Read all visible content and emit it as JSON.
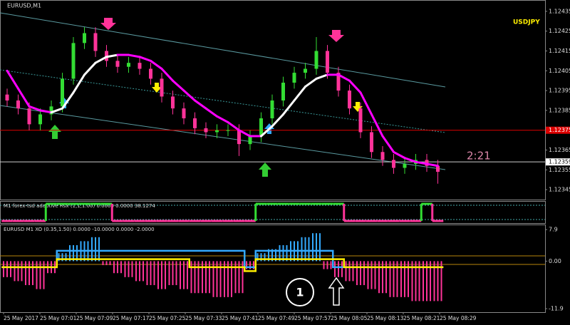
{
  "chart_data": [
    {
      "type": "candlestick",
      "title": "EURUSD,M1",
      "annotations": [
        "USDJPY",
        "2:21"
      ],
      "open": [
        1.12393,
        1.1239,
        1.12386,
        1.12378,
        1.12383,
        1.12387,
        1.12401,
        1.12419,
        1.12424,
        1.12415,
        1.1241,
        1.12407,
        1.12409,
        1.12406,
        1.12401,
        1.12392,
        1.12386,
        1.12381,
        1.12376,
        1.12374,
        1.12375,
        1.12375,
        1.12368,
        1.12372,
        1.12381,
        1.1239,
        1.12399,
        1.12404,
        1.12406,
        1.12415,
        1.12404,
        1.12395,
        1.12386,
        1.12374,
        1.12364,
        1.1236,
        1.12356,
        1.12358,
        1.1236,
        1.12357
      ],
      "high": [
        1.12396,
        1.12393,
        1.12389,
        1.12386,
        1.1239,
        1.12404,
        1.12422,
        1.12427,
        1.12427,
        1.12418,
        1.12413,
        1.12412,
        1.12412,
        1.12409,
        1.12404,
        1.12395,
        1.12389,
        1.12384,
        1.12379,
        1.12378,
        1.12378,
        1.12378,
        1.12375,
        1.12384,
        1.12393,
        1.12402,
        1.12407,
        1.12409,
        1.12422,
        1.12418,
        1.12407,
        1.12398,
        1.12389,
        1.12377,
        1.12367,
        1.12363,
        1.12361,
        1.12363,
        1.12363,
        1.1236
      ],
      "low": [
        1.12387,
        1.12383,
        1.12375,
        1.12375,
        1.1238,
        1.12384,
        1.12398,
        1.12416,
        1.12412,
        1.12407,
        1.12404,
        1.12404,
        1.12403,
        1.12398,
        1.12389,
        1.12383,
        1.12378,
        1.12373,
        1.12371,
        1.12371,
        1.12372,
        1.12362,
        1.12365,
        1.12369,
        1.12378,
        1.12387,
        1.12396,
        1.12401,
        1.12403,
        1.12401,
        1.12392,
        1.12383,
        1.12371,
        1.12361,
        1.12357,
        1.12353,
        1.12353,
        1.12355,
        1.12354,
        1.12348
      ],
      "close": [
        1.1239,
        1.12386,
        1.12378,
        1.12383,
        1.12387,
        1.12401,
        1.12419,
        1.12424,
        1.12415,
        1.1241,
        1.12407,
        1.12409,
        1.12406,
        1.12401,
        1.12392,
        1.12386,
        1.12381,
        1.12376,
        1.12374,
        1.12375,
        1.12375,
        1.12368,
        1.12372,
        1.12381,
        1.1239,
        1.12399,
        1.12404,
        1.12406,
        1.12415,
        1.12404,
        1.12395,
        1.12386,
        1.12374,
        1.12364,
        1.1236,
        1.12356,
        1.12358,
        1.1236,
        1.12357,
        1.12354
      ],
      "up_color": "#33dd33",
      "down_color": "#ff3399",
      "ma": {
        "values": [
          1.12405,
          1.12396,
          1.12387,
          1.12385,
          1.12384,
          1.12386,
          1.12394,
          1.12403,
          1.12409,
          1.12412,
          1.12413,
          1.12413,
          1.12412,
          1.1241,
          1.12406,
          1.124,
          1.12395,
          1.1239,
          1.12386,
          1.12382,
          1.12379,
          1.12375,
          1.12372,
          1.12372,
          1.12377,
          1.12383,
          1.1239,
          1.12397,
          1.12401,
          1.12403,
          1.12403,
          1.124,
          1.12394,
          1.12383,
          1.12372,
          1.12364,
          1.12361,
          1.12359,
          1.12358,
          1.12357
        ],
        "color": "#ff00ff",
        "up_color": "#ffffff"
      },
      "price_lines": [
        {
          "value": 1.12375,
          "color": "#dd0000"
        },
        {
          "value": 1.12359,
          "color": "#cccccc"
        }
      ],
      "ylim": [
        1.1234,
        1.1244
      ],
      "yticks": [
        1.12435,
        1.12425,
        1.12415,
        1.12405,
        1.12395,
        1.12385,
        1.12375,
        1.12365,
        1.12355,
        1.12345
      ],
      "x_labels": [
        "25 May 2017",
        "25 May 07:01",
        "25 May 07:09",
        "25 May 07:17",
        "25 May 07:25",
        "25 May 07:33",
        "25 May 07:41",
        "25 May 07:49",
        "25 May 07:57",
        "25 May 08:05",
        "25 May 08:13",
        "25 May 08:21",
        "25 May 08:29"
      ]
    },
    {
      "type": "step",
      "title": "M1 forex-tsd adaptive Rsx (1,1,1.00) 0.0000 0.0000 38.1274",
      "values": [
        0,
        0,
        0,
        0,
        100,
        100,
        100,
        100,
        100,
        100,
        0,
        0,
        0,
        0,
        0,
        0,
        0,
        0,
        0,
        0,
        0,
        0,
        0,
        100,
        100,
        100,
        100,
        100,
        100,
        100,
        100,
        0,
        0,
        0,
        0,
        0,
        0,
        0,
        100,
        0
      ],
      "up_color": "#33dd33",
      "down_color": "#ff3399",
      "ylim": [
        0,
        100
      ]
    },
    {
      "type": "histogram",
      "title": "EURUSD M1 XO (0.35,1.50) 0.0000 -10.0000 0.0000 -2.0000",
      "values": [
        -4,
        -5,
        -6,
        -7,
        -3,
        2,
        4,
        5,
        6,
        -1,
        -3,
        -4,
        -5,
        -6,
        -7,
        -6,
        -7,
        -8,
        -8,
        -9,
        -9,
        -8,
        -2,
        2,
        3,
        4,
        5,
        6,
        7,
        -2,
        -4,
        -5,
        -6,
        -7,
        -8,
        -9,
        -9,
        -10,
        -10,
        -10
      ],
      "up_color": "#33aaff",
      "down_color": "#ff3399",
      "series": [
        {
          "color": "#33aaff",
          "values": [
            -1.5,
            -1.5,
            -1.5,
            -1.5,
            -1.5,
            2.6,
            2.6,
            2.6,
            2.6,
            2.6,
            2.6,
            2.6,
            2.6,
            2.6,
            2.6,
            2.6,
            2.6,
            2.6,
            2.6,
            2.6,
            2.6,
            2.6,
            -1.5,
            2.6,
            2.6,
            2.6,
            2.6,
            2.6,
            2.6,
            2.6,
            -1.5,
            -1.5,
            -1.5,
            -1.5,
            -1.5,
            -1.5,
            -1.5,
            -1.5,
            -1.5,
            -1.5
          ]
        },
        {
          "color": "#ffee00",
          "values": [
            -1.5,
            -1.5,
            -1.5,
            -1.5,
            -1.5,
            0.5,
            0.5,
            0.5,
            0.5,
            0.5,
            0.5,
            0.5,
            0.5,
            0.5,
            0.5,
            0.5,
            0.5,
            -1.5,
            -1.5,
            -1.5,
            -1.5,
            -1.5,
            -2.5,
            0.5,
            0.5,
            0.5,
            0.5,
            0.5,
            0.5,
            0.5,
            0.5,
            -1.5,
            -1.5,
            -1.5,
            -1.5,
            -1.5,
            -1.5,
            -1.5,
            -1.5,
            -1.5
          ]
        }
      ],
      "ylim": [
        -12.6,
        9
      ],
      "yticks": [
        7.9,
        {
          "value": 0,
          "label": "0.00"
        },
        -11.9
      ],
      "annotations": [
        "1"
      ]
    }
  ]
}
